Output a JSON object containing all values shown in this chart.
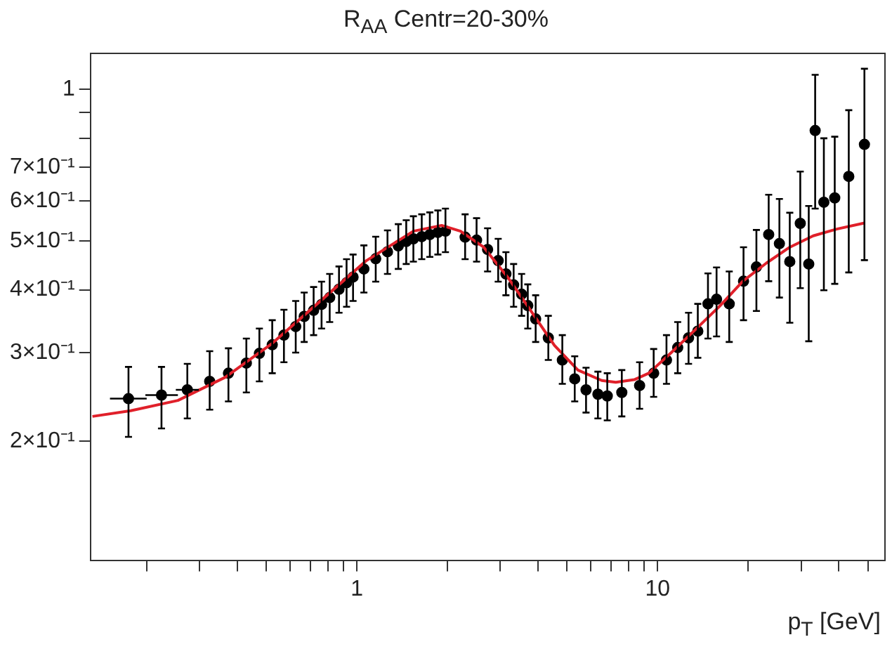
{
  "chart_data": {
    "type": "scatter",
    "title": "R$_{AA}$ Centr=20-30%",
    "xlabel": "p$_{T}$ [GeV]",
    "log": "xy",
    "grid": false,
    "legend": false,
    "xlim": [
      0.13,
      57
    ],
    "ylim": [
      0.116,
      1.18
    ],
    "xticks": [
      {
        "value": 0.2,
        "label": null
      },
      {
        "value": 0.3,
        "label": null
      },
      {
        "value": 0.4,
        "label": null
      },
      {
        "value": 0.5,
        "label": null
      },
      {
        "value": 0.6,
        "label": null
      },
      {
        "value": 0.7,
        "label": null
      },
      {
        "value": 0.8,
        "label": null
      },
      {
        "value": 0.9,
        "label": null
      },
      1,
      {
        "value": 2,
        "label": null
      },
      {
        "value": 3,
        "label": null
      },
      {
        "value": 4,
        "label": null
      },
      {
        "value": 5,
        "label": null
      },
      {
        "value": 6,
        "label": null
      },
      {
        "value": 7,
        "label": null
      },
      {
        "value": 8,
        "label": null
      },
      {
        "value": 9,
        "label": null
      },
      10,
      {
        "value": 20,
        "label": null
      },
      {
        "value": 30,
        "label": null
      },
      {
        "value": 40,
        "label": null
      },
      {
        "value": 50,
        "label": null
      }
    ],
    "yticks": [
      {
        "value": 0.2,
        "label": "2×10⁻¹"
      },
      {
        "value": 0.3,
        "label": "3×10⁻¹"
      },
      {
        "value": 0.4,
        "label": "4×10⁻¹"
      },
      {
        "value": 0.5,
        "label": "5×10⁻¹"
      },
      {
        "value": 0.6,
        "label": "6×10⁻¹"
      },
      {
        "value": 0.7,
        "label": "7×10⁻¹"
      },
      {
        "value": 0.8,
        "label": null
      },
      {
        "value": 0.9,
        "label": null
      },
      1
    ],
    "series": [
      {
        "type": "line",
        "color": "#e0202a",
        "marker": "none",
        "line_style": "solid",
        "x": [
          0.132,
          0.177,
          0.254,
          0.365,
          0.523,
          0.749,
          1.075,
          1.541,
          1.913,
          2.21,
          2.64,
          3.17,
          3.79,
          4.54,
          5.43,
          6.52,
          7.26,
          8.36,
          9.34,
          11.1,
          13.4,
          16.0,
          19.2,
          23.0,
          27.5,
          32.9,
          39.4,
          48.7
        ],
        "values": [
          0.224,
          0.23,
          0.241,
          0.268,
          0.313,
          0.378,
          0.457,
          0.523,
          0.537,
          0.523,
          0.486,
          0.424,
          0.363,
          0.31,
          0.277,
          0.264,
          0.262,
          0.265,
          0.273,
          0.3,
          0.334,
          0.37,
          0.416,
          0.452,
          0.486,
          0.512,
          0.528,
          0.543
        ]
      },
      {
        "color": "#000000",
        "marker": "circle",
        "x": [
          0.174,
          0.224,
          0.273,
          0.324,
          0.374,
          0.429,
          0.474,
          0.523,
          0.572,
          0.626,
          0.668,
          0.718,
          0.763,
          0.812,
          0.872,
          0.924,
          0.971,
          1.055,
          1.155,
          1.264,
          1.373,
          1.459,
          1.541,
          1.643,
          1.748,
          1.859,
          1.97,
          2.29,
          2.5,
          2.72,
          2.95,
          3.13,
          3.32,
          3.53,
          3.7,
          3.93,
          4.33,
          4.82,
          5.3,
          5.78,
          6.33,
          6.8,
          7.6,
          8.71,
          9.7,
          10.7,
          11.66,
          12.67,
          13.6,
          14.7,
          15.7,
          17.3,
          19.3,
          21.3,
          23.4,
          25.4,
          27.5,
          29.8,
          31.8,
          33.4,
          35.7,
          38.8,
          43.2,
          48.7
        ],
        "values": [
          0.243,
          0.247,
          0.253,
          0.263,
          0.273,
          0.286,
          0.299,
          0.311,
          0.325,
          0.338,
          0.354,
          0.364,
          0.374,
          0.386,
          0.401,
          0.413,
          0.424,
          0.44,
          0.461,
          0.476,
          0.489,
          0.499,
          0.505,
          0.51,
          0.515,
          0.52,
          0.523,
          0.509,
          0.502,
          0.481,
          0.457,
          0.43,
          0.409,
          0.392,
          0.372,
          0.35,
          0.321,
          0.29,
          0.266,
          0.253,
          0.248,
          0.246,
          0.25,
          0.258,
          0.273,
          0.29,
          0.307,
          0.321,
          0.331,
          0.375,
          0.383,
          0.375,
          0.416,
          0.444,
          0.515,
          0.494,
          0.455,
          0.542,
          0.45,
          0.829,
          0.597,
          0.609,
          0.672,
          0.778
        ],
        "errors": [
          [
            0.204,
            0.281
          ],
          [
            0.212,
            0.281
          ],
          [
            0.222,
            0.285
          ],
          [
            0.231,
            0.302
          ],
          [
            0.24,
            0.306
          ],
          [
            0.25,
            0.32
          ],
          [
            0.263,
            0.335
          ],
          [
            0.273,
            0.348
          ],
          [
            0.287,
            0.365
          ],
          [
            0.3,
            0.38
          ],
          [
            0.315,
            0.395
          ],
          [
            0.325,
            0.405
          ],
          [
            0.335,
            0.415
          ],
          [
            0.345,
            0.43
          ],
          [
            0.36,
            0.445
          ],
          [
            0.37,
            0.46
          ],
          [
            0.38,
            0.47
          ],
          [
            0.395,
            0.49
          ],
          [
            0.415,
            0.51
          ],
          [
            0.43,
            0.525
          ],
          [
            0.44,
            0.54
          ],
          [
            0.45,
            0.55
          ],
          [
            0.455,
            0.56
          ],
          [
            0.46,
            0.565
          ],
          [
            0.465,
            0.57
          ],
          [
            0.47,
            0.575
          ],
          [
            0.475,
            0.58
          ],
          [
            0.46,
            0.565
          ],
          [
            0.455,
            0.555
          ],
          [
            0.435,
            0.53
          ],
          [
            0.415,
            0.505
          ],
          [
            0.39,
            0.475
          ],
          [
            0.37,
            0.45
          ],
          [
            0.355,
            0.43
          ],
          [
            0.335,
            0.41
          ],
          [
            0.315,
            0.39
          ],
          [
            0.29,
            0.355
          ],
          [
            0.26,
            0.325
          ],
          [
            0.24,
            0.295
          ],
          [
            0.228,
            0.28
          ],
          [
            0.222,
            0.275
          ],
          [
            0.22,
            0.273
          ],
          [
            0.224,
            0.277
          ],
          [
            0.232,
            0.287
          ],
          [
            0.245,
            0.305
          ],
          [
            0.26,
            0.325
          ],
          [
            0.273,
            0.345
          ],
          [
            0.285,
            0.36
          ],
          [
            0.293,
            0.375
          ],
          [
            0.32,
            0.431
          ],
          [
            0.323,
            0.443
          ],
          [
            0.315,
            0.435
          ],
          [
            0.348,
            0.486
          ],
          [
            0.363,
            0.526
          ],
          [
            0.416,
            0.618
          ],
          [
            0.386,
            0.606
          ],
          [
            0.344,
            0.569
          ],
          [
            0.403,
            0.687
          ],
          [
            0.316,
            0.587
          ],
          [
            0.58,
            1.07
          ],
          [
            0.399,
            0.8
          ],
          [
            0.411,
            0.806
          ],
          [
            0.433,
            0.91
          ],
          [
            0.458,
            1.1
          ]
        ],
        "xerrors": [
          [
            0.151,
            0.2
          ],
          [
            0.198,
            0.254
          ],
          [
            0.25,
            0.298
          ],
          null,
          null,
          null,
          null,
          null,
          null,
          null,
          null,
          null,
          null,
          null,
          null,
          null,
          null,
          null,
          null,
          null,
          null,
          null,
          null,
          null,
          null,
          null,
          null,
          null,
          null,
          null,
          null,
          null,
          null,
          null,
          null,
          null,
          null,
          null,
          null,
          null,
          null,
          null,
          null,
          null,
          null,
          null,
          null,
          null,
          null,
          null,
          null,
          null,
          null,
          null,
          null,
          null,
          null,
          null,
          null,
          null,
          null,
          null,
          null,
          null
        ]
      }
    ]
  }
}
